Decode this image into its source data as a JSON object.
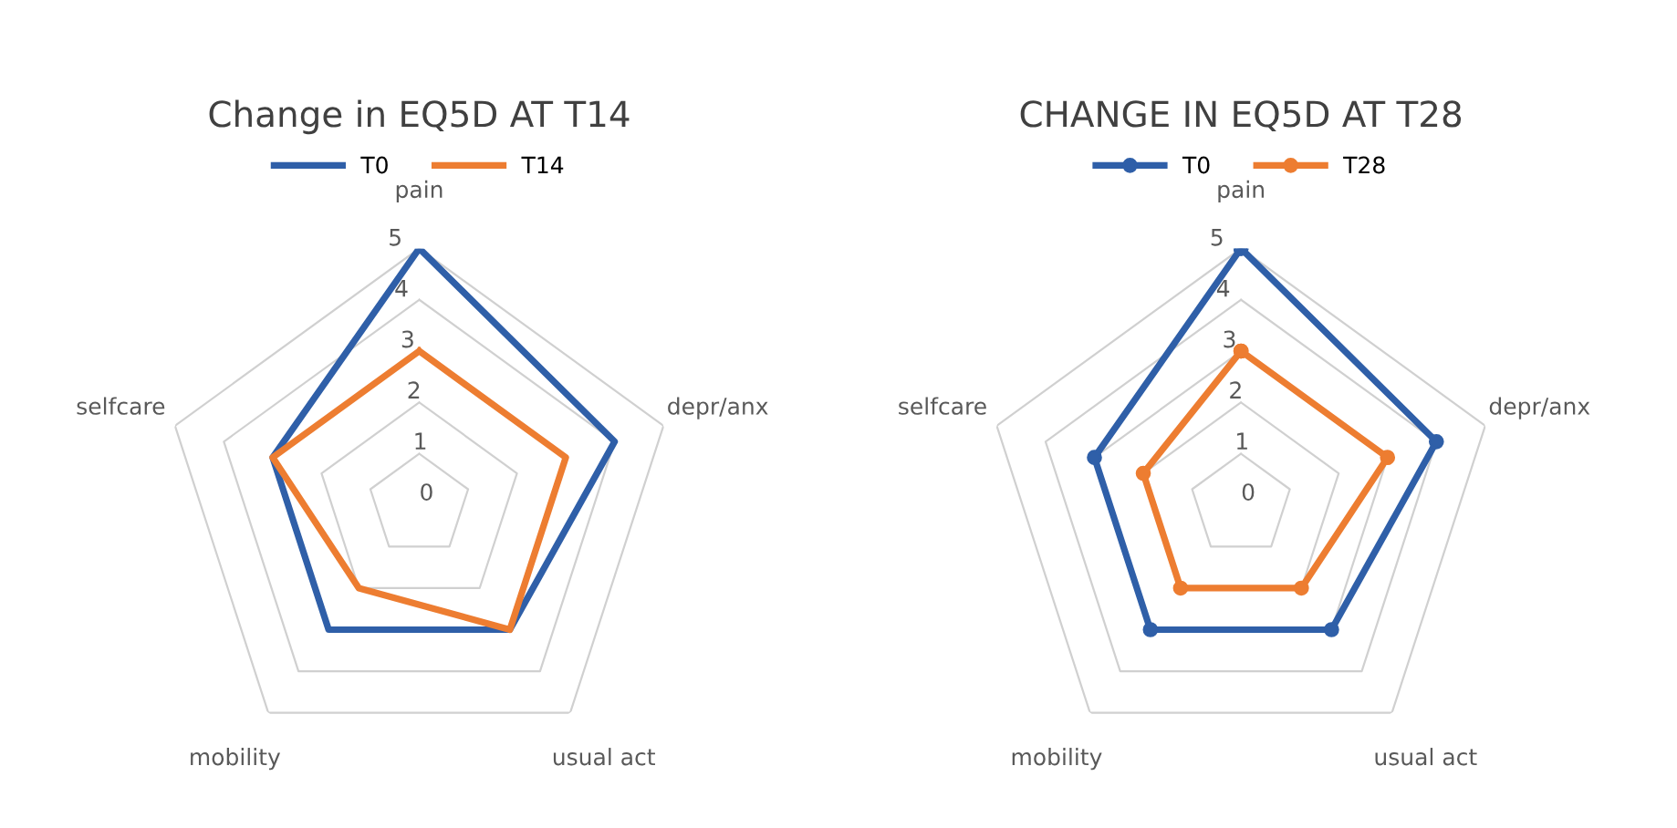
{
  "chart_data": [
    {
      "type": "radar",
      "title": "Change in EQ5D AT T14",
      "categories": [
        "pain",
        "depr/anx",
        "usual act",
        "mobility",
        "selfcare"
      ],
      "ylim": [
        0,
        5
      ],
      "yticks": [
        0,
        1,
        2,
        3,
        4,
        5
      ],
      "grid": true,
      "legend": "top",
      "marker": "none",
      "series": [
        {
          "name": "T0",
          "color": "#2f5fa8",
          "values": [
            5,
            4,
            3,
            3,
            3
          ]
        },
        {
          "name": "T14",
          "color": "#ed7d31",
          "values": [
            3,
            3,
            3,
            2,
            3
          ]
        }
      ]
    },
    {
      "type": "radar",
      "title": "CHANGE IN EQ5D AT T28",
      "categories": [
        "pain",
        "depr/anx",
        "usual act",
        "mobility",
        "selfcare"
      ],
      "ylim": [
        0,
        5
      ],
      "yticks": [
        0,
        1,
        2,
        3,
        4,
        5
      ],
      "grid": true,
      "legend": "top",
      "marker": "circle",
      "series": [
        {
          "name": "T0",
          "color": "#2f5fa8",
          "values": [
            5,
            4,
            3,
            3,
            3
          ]
        },
        {
          "name": "T28",
          "color": "#ed7d31",
          "values": [
            3,
            3,
            2,
            2,
            2
          ]
        }
      ]
    }
  ]
}
